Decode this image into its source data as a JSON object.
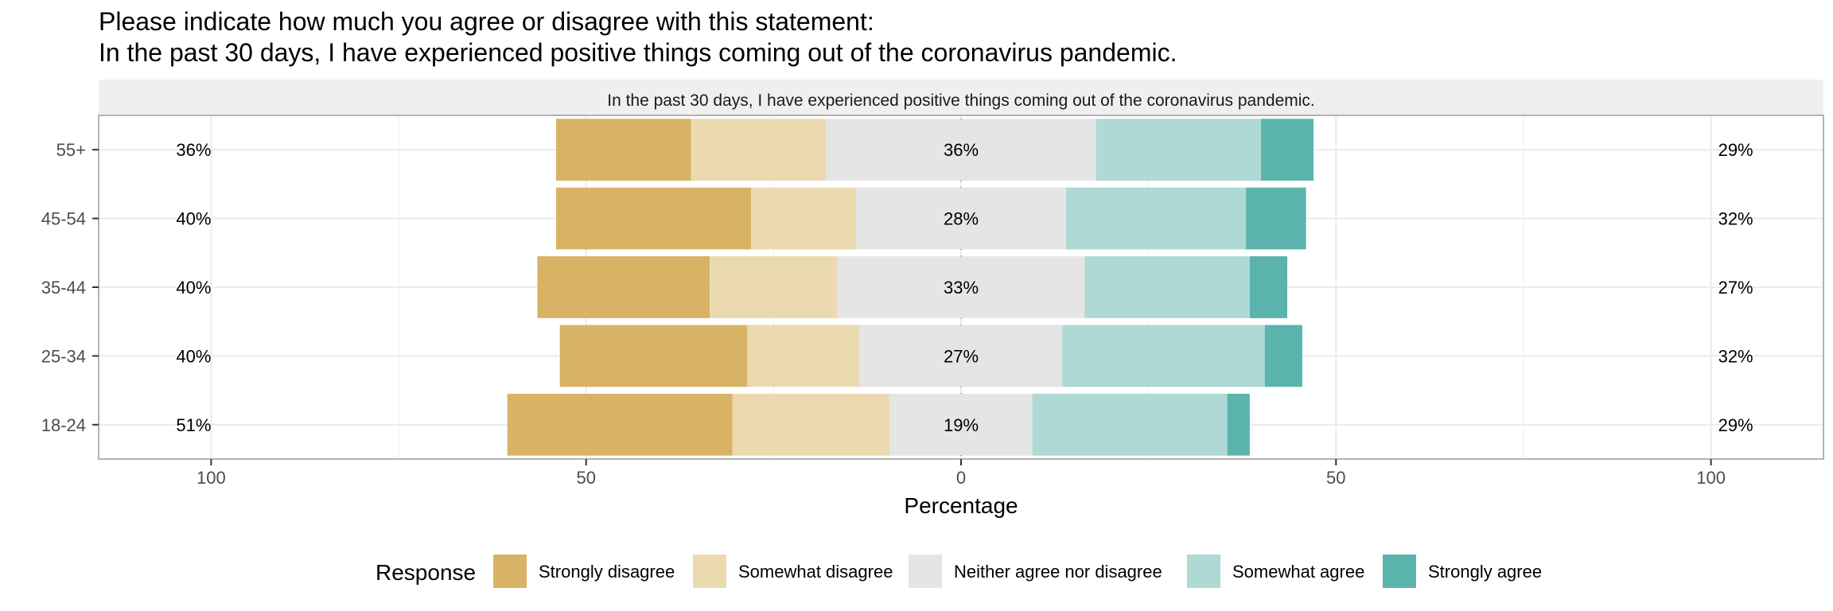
{
  "title_lines": [
    "Please indicate how much you agree or disagree with this statement:",
    "In the past 30 days, I have experienced positive things coming out of the coronavirus pandemic."
  ],
  "chart_data": {
    "type": "bar",
    "orientation": "horizontal",
    "layout": "diverging-likert",
    "facet_label": "In the past 30 days, I have experienced positive things coming out of the coronavirus pandemic.",
    "categories": [
      "55+",
      "45-54",
      "35-44",
      "25-34",
      "18-24"
    ],
    "series": [
      {
        "name": "Strongly disagree",
        "color": "#d8b365",
        "values": [
          18,
          26,
          23,
          25,
          30
        ]
      },
      {
        "name": "Somewhat disagree",
        "color": "#ebdab0",
        "values": [
          18,
          14,
          17,
          15,
          21
        ]
      },
      {
        "name": "Neither agree nor disagree",
        "color": "#e5e5e5",
        "values": [
          36,
          28,
          33,
          27,
          19
        ]
      },
      {
        "name": "Somewhat agree",
        "color": "#aed9d5",
        "values": [
          22,
          24,
          22,
          27,
          26
        ]
      },
      {
        "name": "Strongly agree",
        "color": "#5ab4ac",
        "values": [
          7,
          8,
          5,
          5,
          3
        ]
      }
    ],
    "left_labels": [
      "36%",
      "40%",
      "40%",
      "40%",
      "51%"
    ],
    "center_labels": [
      "36%",
      "28%",
      "33%",
      "27%",
      "19%"
    ],
    "right_labels": [
      "29%",
      "32%",
      "27%",
      "32%",
      "29%"
    ],
    "xlim": [
      -115,
      115
    ],
    "xticks": [
      {
        "value": -100,
        "label": "100"
      },
      {
        "value": -50,
        "label": "50"
      },
      {
        "value": 0,
        "label": "0"
      },
      {
        "value": 50,
        "label": "50"
      },
      {
        "value": 100,
        "label": "100"
      }
    ],
    "xlabel": "Percentage",
    "legend_title": "Response",
    "legend_position": "bottom",
    "grid": true,
    "colors": {
      "strip_background": "#efefef",
      "panel_border": "#b3b3b3",
      "grid": "#ebebeb"
    }
  }
}
